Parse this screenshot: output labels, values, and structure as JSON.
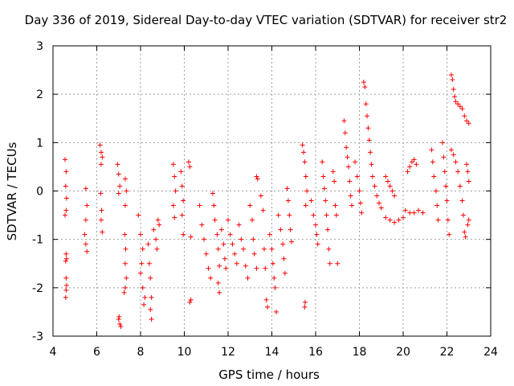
{
  "chart_data": {
    "type": "scatter",
    "title": "Day 336 of 2019, Sidereal Day-to-day VTEC variation (SDTVAR) for receiver str2",
    "xlabel": "GPS time / hours",
    "ylabel": "SDTVAR / TECUs",
    "xlim": [
      4,
      24
    ],
    "ylim": [
      -3,
      3
    ],
    "xticks": [
      4,
      6,
      8,
      10,
      12,
      14,
      16,
      18,
      20,
      22,
      24
    ],
    "yticks": [
      -3,
      -2,
      -1,
      0,
      1,
      2,
      3
    ],
    "xtick_labels": [
      "4",
      "6",
      "8",
      "10",
      "12",
      "14",
      "16",
      "18",
      "20",
      "22",
      "24"
    ],
    "ytick_labels": [
      "-3",
      "-2",
      "-1",
      "0",
      "1",
      "2",
      "3"
    ],
    "grid": true,
    "marker": "+",
    "series": [
      {
        "name": "SDTVAR",
        "color": "#ff0000",
        "points": [
          [
            4.55,
            0.65
          ],
          [
            4.6,
            0.4
          ],
          [
            4.58,
            0.1
          ],
          [
            4.62,
            -0.15
          ],
          [
            4.6,
            -0.4
          ],
          [
            4.55,
            -0.5
          ],
          [
            4.6,
            -1.3
          ],
          [
            4.62,
            -1.4
          ],
          [
            4.58,
            -1.45
          ],
          [
            4.6,
            -1.8
          ],
          [
            4.62,
            -1.95
          ],
          [
            4.6,
            -2.05
          ],
          [
            4.58,
            -2.2
          ],
          [
            5.5,
            0.05
          ],
          [
            5.55,
            -0.3
          ],
          [
            5.5,
            -0.6
          ],
          [
            5.45,
            -0.9
          ],
          [
            5.5,
            -1.1
          ],
          [
            5.55,
            -1.25
          ],
          [
            6.15,
            0.95
          ],
          [
            6.2,
            0.8
          ],
          [
            6.25,
            0.7
          ],
          [
            6.2,
            0.55
          ],
          [
            6.18,
            -0.05
          ],
          [
            6.22,
            -0.4
          ],
          [
            6.2,
            -0.6
          ],
          [
            6.25,
            -0.85
          ],
          [
            6.95,
            0.55
          ],
          [
            7.0,
            0.35
          ],
          [
            7.05,
            0.1
          ],
          [
            7.0,
            -0.05
          ],
          [
            7.02,
            -2.6
          ],
          [
            7.05,
            -2.75
          ],
          [
            7.1,
            -2.8
          ],
          [
            7.0,
            -2.65
          ],
          [
            7.3,
            0.25
          ],
          [
            7.35,
            0.0
          ],
          [
            7.3,
            -0.3
          ],
          [
            7.28,
            -0.9
          ],
          [
            7.32,
            -1.2
          ],
          [
            7.3,
            -1.5
          ],
          [
            7.35,
            -1.8
          ],
          [
            7.3,
            -2.0
          ],
          [
            7.25,
            -2.1
          ],
          [
            7.9,
            -0.5
          ],
          [
            8.0,
            -0.9
          ],
          [
            8.1,
            -1.2
          ],
          [
            8.05,
            -1.5
          ],
          [
            8.0,
            -1.7
          ],
          [
            8.1,
            -2.0
          ],
          [
            8.2,
            -2.2
          ],
          [
            8.15,
            -2.35
          ],
          [
            8.35,
            -1.1
          ],
          [
            8.4,
            -1.5
          ],
          [
            8.45,
            -1.8
          ],
          [
            8.5,
            -2.2
          ],
          [
            8.45,
            -2.45
          ],
          [
            8.5,
            -2.65
          ],
          [
            8.6,
            -0.8
          ],
          [
            8.7,
            -1.0
          ],
          [
            8.75,
            -1.2
          ],
          [
            8.8,
            -0.6
          ],
          [
            8.85,
            -0.7
          ],
          [
            9.5,
            0.55
          ],
          [
            9.55,
            0.3
          ],
          [
            9.6,
            0.0
          ],
          [
            9.5,
            -0.3
          ],
          [
            9.55,
            -0.55
          ],
          [
            9.85,
            0.4
          ],
          [
            9.9,
            0.1
          ],
          [
            9.95,
            -0.2
          ],
          [
            9.9,
            -0.5
          ],
          [
            9.95,
            -0.9
          ],
          [
            10.2,
            0.6
          ],
          [
            10.25,
            0.5
          ],
          [
            10.3,
            -0.95
          ],
          [
            10.25,
            -2.3
          ],
          [
            10.3,
            -2.25
          ],
          [
            10.7,
            -0.3
          ],
          [
            10.8,
            -0.7
          ],
          [
            10.9,
            -1.0
          ],
          [
            11.0,
            -1.3
          ],
          [
            11.1,
            -1.6
          ],
          [
            11.2,
            -1.8
          ],
          [
            11.3,
            -0.05
          ],
          [
            11.35,
            -0.3
          ],
          [
            11.4,
            -0.6
          ],
          [
            11.5,
            -0.9
          ],
          [
            11.55,
            -1.2
          ],
          [
            11.6,
            -1.55
          ],
          [
            11.55,
            -1.9
          ],
          [
            11.6,
            -2.1
          ],
          [
            11.7,
            -0.8
          ],
          [
            11.8,
            -1.1
          ],
          [
            11.85,
            -1.4
          ],
          [
            11.9,
            -1.6
          ],
          [
            12.0,
            -0.6
          ],
          [
            12.1,
            -0.9
          ],
          [
            12.2,
            -1.1
          ],
          [
            12.3,
            -1.3
          ],
          [
            12.4,
            -1.5
          ],
          [
            12.5,
            -0.7
          ],
          [
            12.6,
            -1.0
          ],
          [
            12.7,
            -1.2
          ],
          [
            12.8,
            -1.55
          ],
          [
            12.9,
            -1.8
          ],
          [
            13.0,
            -0.3
          ],
          [
            13.1,
            -0.6
          ],
          [
            13.15,
            -1.0
          ],
          [
            13.2,
            -1.3
          ],
          [
            13.3,
            -1.6
          ],
          [
            13.3,
            0.3
          ],
          [
            13.35,
            0.25
          ],
          [
            13.5,
            -0.1
          ],
          [
            13.6,
            -0.4
          ],
          [
            13.65,
            -1.2
          ],
          [
            13.7,
            -1.6
          ],
          [
            13.75,
            -2.25
          ],
          [
            13.8,
            -2.4
          ],
          [
            13.9,
            -0.9
          ],
          [
            14.0,
            -1.2
          ],
          [
            14.05,
            -1.5
          ],
          [
            14.1,
            -1.8
          ],
          [
            14.15,
            -2.0
          ],
          [
            14.2,
            -2.5
          ],
          [
            14.3,
            -0.5
          ],
          [
            14.4,
            -0.8
          ],
          [
            14.5,
            -1.1
          ],
          [
            14.55,
            -1.4
          ],
          [
            14.6,
            -1.7
          ],
          [
            14.7,
            0.05
          ],
          [
            14.75,
            -0.2
          ],
          [
            14.8,
            -0.5
          ],
          [
            14.85,
            -0.8
          ],
          [
            14.9,
            -1.05
          ],
          [
            15.4,
            0.95
          ],
          [
            15.45,
            0.8
          ],
          [
            15.5,
            0.6
          ],
          [
            15.55,
            0.3
          ],
          [
            15.6,
            0.0
          ],
          [
            15.55,
            -0.3
          ],
          [
            15.5,
            -2.4
          ],
          [
            15.52,
            -2.3
          ],
          [
            15.8,
            -0.2
          ],
          [
            15.9,
            -0.5
          ],
          [
            16.0,
            -0.7
          ],
          [
            16.05,
            -0.9
          ],
          [
            16.1,
            -1.1
          ],
          [
            16.3,
            0.6
          ],
          [
            16.35,
            0.3
          ],
          [
            16.4,
            0.05
          ],
          [
            16.45,
            -0.2
          ],
          [
            16.5,
            -0.5
          ],
          [
            16.55,
            -0.8
          ],
          [
            16.6,
            -1.2
          ],
          [
            16.65,
            -1.5
          ],
          [
            16.8,
            0.4
          ],
          [
            16.85,
            0.2
          ],
          [
            16.9,
            -0.3
          ],
          [
            16.95,
            -0.5
          ],
          [
            17.0,
            -1.5
          ],
          [
            17.3,
            1.45
          ],
          [
            17.35,
            1.2
          ],
          [
            17.4,
            0.9
          ],
          [
            17.45,
            0.7
          ],
          [
            17.5,
            0.5
          ],
          [
            17.55,
            0.2
          ],
          [
            17.6,
            -0.1
          ],
          [
            17.65,
            -0.3
          ],
          [
            17.8,
            0.6
          ],
          [
            17.9,
            0.3
          ],
          [
            18.0,
            0.0
          ],
          [
            18.05,
            -0.25
          ],
          [
            18.1,
            -0.45
          ],
          [
            18.2,
            2.25
          ],
          [
            18.25,
            2.15
          ],
          [
            18.3,
            1.8
          ],
          [
            18.35,
            1.55
          ],
          [
            18.4,
            1.3
          ],
          [
            18.45,
            1.05
          ],
          [
            18.5,
            0.8
          ],
          [
            18.55,
            0.55
          ],
          [
            18.6,
            0.3
          ],
          [
            18.7,
            0.1
          ],
          [
            18.8,
            -0.1
          ],
          [
            18.9,
            -0.25
          ],
          [
            19.0,
            -0.35
          ],
          [
            19.2,
            0.3
          ],
          [
            19.3,
            0.2
          ],
          [
            19.4,
            0.1
          ],
          [
            19.5,
            0.0
          ],
          [
            19.6,
            -0.1
          ],
          [
            19.2,
            -0.55
          ],
          [
            19.4,
            -0.6
          ],
          [
            19.6,
            -0.65
          ],
          [
            19.8,
            -0.6
          ],
          [
            20.0,
            -0.55
          ],
          [
            20.2,
            0.4
          ],
          [
            20.3,
            0.5
          ],
          [
            20.4,
            0.6
          ],
          [
            20.5,
            0.65
          ],
          [
            20.6,
            0.55
          ],
          [
            20.1,
            -0.4
          ],
          [
            20.3,
            -0.45
          ],
          [
            20.5,
            -0.45
          ],
          [
            20.7,
            -0.4
          ],
          [
            20.9,
            -0.45
          ],
          [
            21.3,
            0.85
          ],
          [
            21.35,
            0.6
          ],
          [
            21.4,
            0.3
          ],
          [
            21.5,
            0.0
          ],
          [
            21.55,
            -0.3
          ],
          [
            21.6,
            -0.6
          ],
          [
            21.8,
            1.0
          ],
          [
            21.85,
            0.7
          ],
          [
            21.9,
            0.4
          ],
          [
            21.95,
            0.1
          ],
          [
            22.0,
            -0.2
          ],
          [
            22.05,
            -0.6
          ],
          [
            22.1,
            -0.9
          ],
          [
            22.2,
            2.4
          ],
          [
            22.25,
            2.3
          ],
          [
            22.3,
            2.1
          ],
          [
            22.35,
            1.95
          ],
          [
            22.4,
            1.85
          ],
          [
            22.5,
            1.8
          ],
          [
            22.6,
            1.75
          ],
          [
            22.7,
            1.7
          ],
          [
            22.8,
            1.55
          ],
          [
            22.9,
            1.45
          ],
          [
            23.0,
            1.4
          ],
          [
            22.2,
            0.85
          ],
          [
            22.3,
            0.75
          ],
          [
            22.4,
            0.6
          ],
          [
            22.5,
            0.4
          ],
          [
            22.6,
            0.1
          ],
          [
            22.7,
            -0.2
          ],
          [
            22.75,
            -0.5
          ],
          [
            22.8,
            -0.85
          ],
          [
            22.85,
            -0.95
          ],
          [
            22.9,
            0.55
          ],
          [
            22.95,
            0.4
          ],
          [
            23.0,
            0.2
          ],
          [
            23.0,
            -0.6
          ],
          [
            22.95,
            -0.7
          ]
        ]
      }
    ]
  }
}
